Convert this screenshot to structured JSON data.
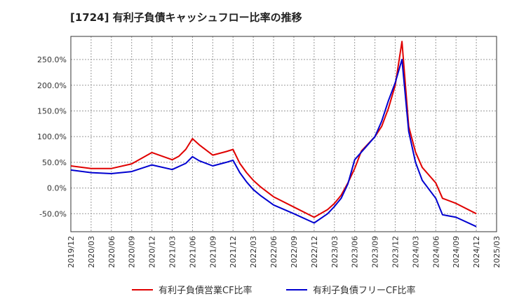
{
  "chart_data": {
    "type": "line",
    "title": "[1724]  有利子負債キャッシュフロー比率の推移",
    "xlabel": "",
    "ylabel": "",
    "x_ticks": [
      "2019/12",
      "2020/03",
      "2020/06",
      "2020/09",
      "2020/12",
      "2021/03",
      "2021/06",
      "2021/09",
      "2021/12",
      "2022/03",
      "2022/06",
      "2022/09",
      "2022/12",
      "2023/03",
      "2023/06",
      "2023/09",
      "2023/12",
      "2024/03",
      "2024/06",
      "2024/09",
      "2024/12",
      "2025/03"
    ],
    "y_ticks": [
      "-50.0%",
      "0.0%",
      "50.0%",
      "100.0%",
      "150.0%",
      "200.0%",
      "250.0%"
    ],
    "y_tick_values": [
      -50,
      0,
      50,
      100,
      150,
      200,
      250
    ],
    "ylim": [
      -85,
      295
    ],
    "xlim": [
      "2019/12",
      "2025/03"
    ],
    "grid": true,
    "legend_position": "bottom",
    "series": [
      {
        "name": "有利子負債営業CF比率",
        "color": "#e00000",
        "points": [
          [
            "2019/12",
            43
          ],
          [
            "2020/03",
            38
          ],
          [
            "2020/06",
            38
          ],
          [
            "2020/09",
            47
          ],
          [
            "2020/12",
            69
          ],
          [
            "2021/03",
            55
          ],
          [
            "2021/04",
            62
          ],
          [
            "2021/05",
            75
          ],
          [
            "2021/06",
            96
          ],
          [
            "2021/07",
            84
          ],
          [
            "2021/09",
            64
          ],
          [
            "2021/11",
            71
          ],
          [
            "2021/12",
            75
          ],
          [
            "2022/01",
            48
          ],
          [
            "2022/02",
            30
          ],
          [
            "2022/03",
            15
          ],
          [
            "2022/04",
            3
          ],
          [
            "2022/06",
            -17
          ],
          [
            "2022/09",
            -37
          ],
          [
            "2022/12",
            -57
          ],
          [
            "2023/02",
            -42
          ],
          [
            "2023/03",
            -30
          ],
          [
            "2023/04",
            -14
          ],
          [
            "2023/05",
            10
          ],
          [
            "2023/06",
            38
          ],
          [
            "2023/07",
            72
          ],
          [
            "2023/09",
            100
          ],
          [
            "2023/10",
            120
          ],
          [
            "2023/11",
            155
          ],
          [
            "2023/12",
            200
          ],
          [
            "2024/01",
            285
          ],
          [
            "2024/02",
            120
          ],
          [
            "2024/03",
            70
          ],
          [
            "2024/04",
            40
          ],
          [
            "2024/06",
            10
          ],
          [
            "2024/07",
            -20
          ],
          [
            "2024/09",
            -30
          ],
          [
            "2024/12",
            -50
          ]
        ]
      },
      {
        "name": "有利子負債フリーCF比率",
        "color": "#0000d0",
        "points": [
          [
            "2019/12",
            35
          ],
          [
            "2020/03",
            30
          ],
          [
            "2020/06",
            28
          ],
          [
            "2020/09",
            32
          ],
          [
            "2020/12",
            45
          ],
          [
            "2021/03",
            36
          ],
          [
            "2021/05",
            48
          ],
          [
            "2021/06",
            61
          ],
          [
            "2021/07",
            53
          ],
          [
            "2021/09",
            43
          ],
          [
            "2021/11",
            50
          ],
          [
            "2021/12",
            54
          ],
          [
            "2022/01",
            30
          ],
          [
            "2022/02",
            12
          ],
          [
            "2022/03",
            -3
          ],
          [
            "2022/04",
            -14
          ],
          [
            "2022/06",
            -33
          ],
          [
            "2022/09",
            -50
          ],
          [
            "2022/12",
            -68
          ],
          [
            "2023/02",
            -50
          ],
          [
            "2023/03",
            -36
          ],
          [
            "2023/04",
            -20
          ],
          [
            "2023/05",
            8
          ],
          [
            "2023/06",
            55
          ],
          [
            "2023/09",
            100
          ],
          [
            "2023/10",
            130
          ],
          [
            "2023/11",
            170
          ],
          [
            "2023/12",
            205
          ],
          [
            "2024/01",
            250
          ],
          [
            "2024/02",
            110
          ],
          [
            "2024/03",
            50
          ],
          [
            "2024/04",
            15
          ],
          [
            "2024/06",
            -20
          ],
          [
            "2024/07",
            -52
          ],
          [
            "2024/09",
            -57
          ],
          [
            "2024/12",
            -75
          ]
        ]
      }
    ]
  }
}
